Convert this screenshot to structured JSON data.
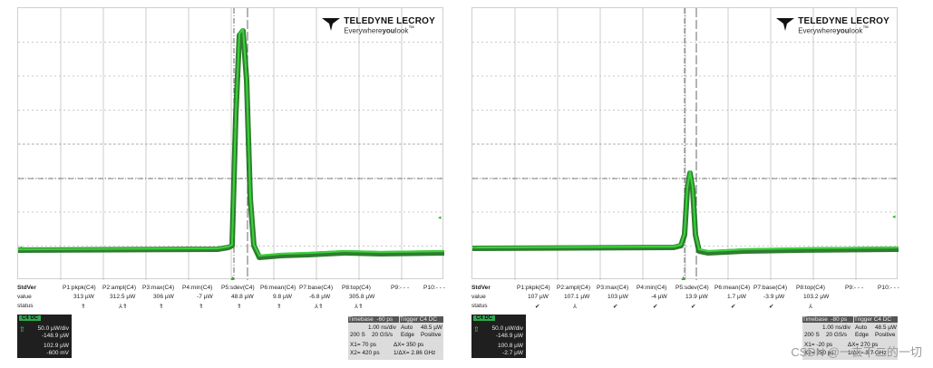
{
  "brand": {
    "name": "TELEDYNE LECROY",
    "tagline_prefix": "Everywhere",
    "tagline_em": "you",
    "tagline_suffix": "look",
    "tm": "™"
  },
  "colors": {
    "trace": "#2bb52b",
    "trace_dark": "#0a4a0a",
    "grid": "#9a9a9a",
    "panel": "#1f1f1f"
  },
  "left": {
    "status_label": "StdVer",
    "row_value": "value",
    "row_status": "status",
    "params": [
      {
        "label": "P1:pkpk(C4)",
        "value": "313 µW",
        "status": "⇑"
      },
      {
        "label": "P2:ampl(C4)",
        "value": "312.5 µW",
        "status": "⅄⇑"
      },
      {
        "label": "P3:max(C4)",
        "value": "306 µW",
        "status": "⇑"
      },
      {
        "label": "P4:min(C4)",
        "value": "-7 µW",
        "status": "⇑"
      },
      {
        "label": "P5:sdev(C4)",
        "value": "48.8 µW",
        "status": "⇑"
      },
      {
        "label": "P6:mean(C4)",
        "value": "9.8 µW",
        "status": "⇑"
      },
      {
        "label": "P7:base(C4)",
        "value": "-6.8 µW",
        "status": "⅄⇑"
      },
      {
        "label": "P8:top(C4)",
        "value": "305.8 µW",
        "status": "⅄⇑"
      },
      {
        "label": "P9:- - -",
        "value": "",
        "status": ""
      },
      {
        "label": "P10:- - -",
        "value": "",
        "status": ""
      }
    ],
    "channel": {
      "badge": "C4 DC",
      "scale": "50.0 µW/div",
      "offset": "-148.9 µW",
      "val1": "102.9 µW",
      "val2": "-600 mV"
    },
    "timebase": {
      "h1": "Timebase",
      "h1v": "-60 ps",
      "h2": "Trigger",
      "h2v": "C4 DC",
      "r1a": "",
      "r1b": "1.00 ns/div",
      "r1c": "Auto",
      "r1d": "48.5 µW",
      "r2a": "200 S",
      "r2b": "20 GS/s",
      "r2c": "Edge",
      "r2d": "Positive"
    },
    "cursors": {
      "x1": "X1=",
      "x1v": "70 ps",
      "dx": "ΔX=",
      "dxv": "350 ps",
      "x2": "X2=",
      "x2v": "420 ps",
      "idx": "1/ΔX=",
      "idxv": "2.86 GHz"
    }
  },
  "right": {
    "status_label": "StdVer",
    "row_value": "value",
    "row_status": "status",
    "params": [
      {
        "label": "P1:pkpk(C4)",
        "value": "107 µW",
        "status": "✔"
      },
      {
        "label": "P2:ampl(C4)",
        "value": "107.1 µW",
        "status": "⅄"
      },
      {
        "label": "P3:max(C4)",
        "value": "103 µW",
        "status": "✔"
      },
      {
        "label": "P4:min(C4)",
        "value": "-4 µW",
        "status": "✔"
      },
      {
        "label": "P5:sdev(C4)",
        "value": "13.9 µW",
        "status": "✔"
      },
      {
        "label": "P6:mean(C4)",
        "value": "1.7 µW",
        "status": "✔"
      },
      {
        "label": "P7:base(C4)",
        "value": "-3.9 µW",
        "status": "✔"
      },
      {
        "label": "P8:top(C4)",
        "value": "103.2 µW",
        "status": "⅄"
      },
      {
        "label": "P9:- - -",
        "value": "",
        "status": ""
      },
      {
        "label": "P10:- - -",
        "value": "",
        "status": ""
      }
    ],
    "channel": {
      "badge": "C4 DC",
      "scale": "50.0 µW/div",
      "offset": "-148.9 µW",
      "val1": "100.8 µW",
      "val2": "-2.7 µW"
    },
    "timebase": {
      "h1": "Timebase",
      "h1v": "-80 ps",
      "h2": "Trigger",
      "h2v": "C4 DC",
      "r1a": "",
      "r1b": "1.00 ns/div",
      "r1c": "Auto",
      "r1d": "48.5 µW",
      "r2a": "200 S",
      "r2b": "20 GS/s",
      "r2c": "Edge",
      "r2d": "Positive"
    },
    "cursors": {
      "x1": "X1=",
      "x1v": "-20 ps",
      "dx": "ΔX=",
      "dxv": "270 ps",
      "x2": "X2=",
      "x2v": "250 ps",
      "idx": "1/ΔX=",
      "idxv": "3.7 GHz"
    }
  },
  "watermark": "CSDN @一去不二的一切"
}
